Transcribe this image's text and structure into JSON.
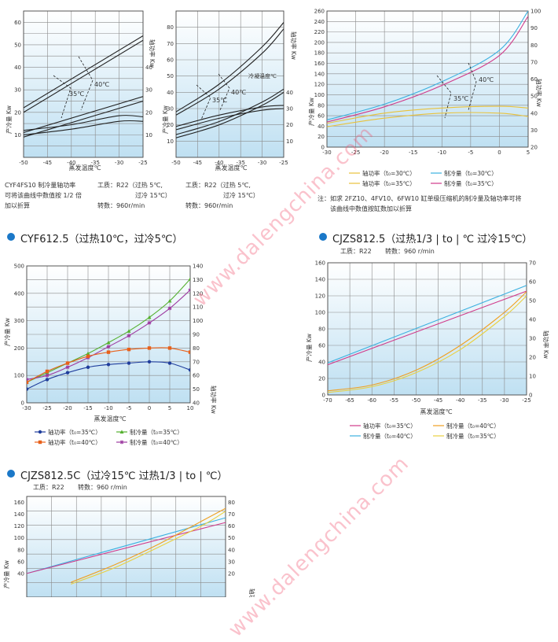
{
  "watermark": "www.dalengchina.com",
  "common": {
    "x_label": "蒸发温度℃",
    "cap_label": "产冷量 Kw",
    "pow_label": "轴功率 Kw",
    "work_fluid": "工质：R22",
    "speed": "转数：960r/min",
    "speed2": "转数：960 r/min"
  },
  "top_left": {
    "note_lines": [
      "CYF4FS10  制冷量轴功率",
      "可将该曲线中数值按 1/2 倍",
      "加以折算"
    ],
    "cond_line1": "工质：R22（过热 5℃,",
    "cond_line2": "过冷 15℃）",
    "speed": "转数：960r/min"
  },
  "top_mid": {
    "cond_line1": "工质：R22（过热 5℃,",
    "cond_line2": "过冷 15℃）",
    "speed": "转数：960r/min",
    "inner_label": "冷凝温度℃"
  },
  "top_right": {
    "legend": [
      "轴功率（t₀=30℃）",
      "制冷量（t₀=30℃）",
      "轴功率（t₀=35℃）",
      "制冷量（t₀=35℃）"
    ],
    "note_line1": "注：如求 2FZ10、4FV10、6FW10 缸单级压缩机的制冷量及轴功率可将",
    "note_line2": "该曲线中数值按缸数加以折算"
  },
  "mid_left": {
    "title": "CYF612.5（过热10℃，过冷5℃）",
    "legend": [
      "轴功率（t₀=35℃）",
      "制冷量（t₀=35℃）",
      "轴功率（t₀=40℃）",
      "制冷量（t₀=40℃）"
    ]
  },
  "mid_right": {
    "title": "CJZS812.5（过热1/3 | to | ℃  过冷15℃）",
    "legend": [
      "轴功率（t₀=35℃）",
      "制冷量（t₀=40℃）",
      "制冷量（t₀=40℃）",
      "制冷量（t₀=35℃）"
    ]
  },
  "bottom": {
    "title": "CJZS812.5C（过冷15℃  过热1/3 | to | ℃）"
  },
  "chart_data": [
    {
      "id": "c1",
      "type": "line",
      "xlabel": "蒸发温度℃",
      "xlim": [
        -50,
        -25
      ],
      "xticks": [
        -50,
        -45,
        -40,
        -35,
        -30,
        -25
      ],
      "ylim_left": [
        0,
        65
      ],
      "yticks_left": [
        10,
        20,
        30,
        40,
        50,
        60
      ],
      "ylabel_left": "产冷量 Kw",
      "ylim_right": [
        0,
        65
      ],
      "yticks_right": [
        10,
        20,
        30,
        40
      ],
      "ylabel_right": "轴功率 Kw",
      "annotations": [
        "35℃",
        "40℃"
      ],
      "series": [
        {
          "axis": "left",
          "color": "#222",
          "x": [
            -50,
            -25
          ],
          "y": [
            22,
            54
          ]
        },
        {
          "axis": "left",
          "color": "#222",
          "x": [
            -50,
            -25
          ],
          "y": [
            20,
            52
          ]
        },
        {
          "axis": "left",
          "color": "#222",
          "x": [
            -50,
            -40,
            -30,
            -25
          ],
          "y": [
            12,
            14.5,
            18.5,
            18
          ]
        },
        {
          "axis": "left",
          "color": "#222",
          "x": [
            -50,
            -40,
            -30,
            -25
          ],
          "y": [
            10,
            12.5,
            16,
            16
          ]
        },
        {
          "axis": "left",
          "color": "#222",
          "x": [
            -50,
            -25
          ],
          "y": [
            11,
            27
          ]
        },
        {
          "axis": "left",
          "color": "#222",
          "x": [
            -50,
            -25
          ],
          "y": [
            9,
            25
          ]
        }
      ]
    },
    {
      "id": "c2",
      "type": "line",
      "xlabel": "蒸发温度℃",
      "xlim": [
        -50,
        -25
      ],
      "xticks": [
        -50,
        -45,
        -40,
        -35,
        -30,
        -25
      ],
      "ylim_left": [
        0,
        90
      ],
      "yticks_left": [
        10,
        20,
        30,
        40,
        50,
        60,
        70,
        80
      ],
      "ylabel_left": "产冷量 Kw",
      "ylim_right": [
        0,
        90
      ],
      "yticks_right": [
        10,
        20,
        30,
        40
      ],
      "ylabel_right": "轴功率 Kw",
      "annotations": [
        "35℃",
        "40℃"
      ],
      "series": [
        {
          "axis": "left",
          "color": "#222",
          "x": [
            -50,
            -40,
            -30,
            -25
          ],
          "y": [
            28,
            45,
            68,
            83
          ]
        },
        {
          "axis": "left",
          "color": "#222",
          "x": [
            -50,
            -40,
            -30,
            -25
          ],
          "y": [
            26,
            42,
            64,
            79
          ]
        },
        {
          "axis": "left",
          "color": "#222",
          "x": [
            -50,
            -40,
            -30,
            -25
          ],
          "y": [
            19,
            26,
            31,
            32
          ]
        },
        {
          "axis": "left",
          "color": "#222",
          "x": [
            -50,
            -40,
            -30,
            -25
          ],
          "y": [
            17,
            24,
            29,
            30
          ]
        },
        {
          "axis": "left",
          "color": "#222",
          "x": [
            -50,
            -40,
            -30,
            -25
          ],
          "y": [
            14,
            22,
            34,
            42
          ]
        },
        {
          "axis": "left",
          "color": "#222",
          "x": [
            -50,
            -40,
            -30,
            -25
          ],
          "y": [
            12,
            20,
            32,
            40
          ]
        }
      ]
    },
    {
      "id": "c3",
      "type": "line",
      "xlabel": "",
      "xlim": [
        -30,
        5
      ],
      "xticks": [
        -30,
        -25,
        -20,
        -15,
        -10,
        -5,
        0,
        5
      ],
      "ylim_left": [
        0,
        260
      ],
      "yticks_left": [
        0,
        20,
        40,
        60,
        80,
        100,
        120,
        140,
        160,
        180,
        200,
        220,
        240,
        260
      ],
      "ylabel_left": "产冷量 Kw",
      "ylim_right": [
        20,
        100
      ],
      "yticks_right": [
        20,
        30,
        40,
        50,
        60,
        70,
        80,
        90,
        100
      ],
      "ylabel_right": "轴功率 Kw",
      "annotations": [
        "40℃",
        "35℃"
      ],
      "series": [
        {
          "name": "制冷量（t₀=30℃）",
          "axis": "left",
          "color": "#3bb0e0",
          "x": [
            -30,
            -20,
            -10,
            0,
            5
          ],
          "y": [
            52,
            82,
            125,
            185,
            260
          ]
        },
        {
          "name": "制冷量（t₀=35℃）",
          "axis": "left",
          "color": "#d03a8a",
          "x": [
            -30,
            -20,
            -10,
            0,
            5
          ],
          "y": [
            48,
            77,
            118,
            175,
            250
          ]
        },
        {
          "name": "轴功率（t₀=30℃）",
          "axis": "right",
          "color": "#e9c23b",
          "x": [
            -30,
            -20,
            -10,
            0,
            5
          ],
          "y": [
            34,
            40,
            43,
            44,
            43
          ]
        },
        {
          "name": "轴功率（t₀=35℃）",
          "axis": "right",
          "color": "#e9c23b",
          "x": [
            -30,
            -20,
            -10,
            0,
            5
          ],
          "y": [
            32,
            37,
            40,
            40,
            38
          ]
        }
      ]
    },
    {
      "id": "c4",
      "type": "line",
      "xlabel": "蒸发温度℃",
      "xlim": [
        -30,
        10
      ],
      "xticks": [
        -30,
        -25,
        -20,
        -15,
        -10,
        -5,
        0,
        5,
        10
      ],
      "ylim_left": [
        0,
        500
      ],
      "yticks_left": [
        0,
        100,
        200,
        300,
        400,
        500
      ],
      "ylabel_left": "产冷量 Kw",
      "ylim_right": [
        40,
        140
      ],
      "yticks_right": [
        40,
        50,
        60,
        70,
        80,
        90,
        100,
        110,
        120,
        130,
        140
      ],
      "ylabel_right": "轴功率 Kw",
      "series": [
        {
          "name": "制冷量（t₀=35℃）",
          "axis": "left",
          "color": "#55b030",
          "marker": "^",
          "x": [
            -30,
            -25,
            -20,
            -15,
            -10,
            -5,
            0,
            5,
            10
          ],
          "y": [
            75,
            110,
            145,
            180,
            220,
            262,
            312,
            372,
            452
          ]
        },
        {
          "name": "制冷量（t₀=40℃）",
          "axis": "left",
          "color": "#9c3aa0",
          "marker": "*",
          "x": [
            -30,
            -25,
            -20,
            -15,
            -10,
            -5,
            0,
            5,
            10
          ],
          "y": [
            85,
            100,
            130,
            165,
            205,
            245,
            292,
            345,
            412
          ]
        },
        {
          "name": "轴功率（t₀=40℃）",
          "axis": "right",
          "color": "#e8601a",
          "marker": "s",
          "x": [
            -30,
            -25,
            -20,
            -15,
            -10,
            -5,
            0,
            5,
            10
          ],
          "y": [
            55,
            63,
            69,
            74,
            77,
            79,
            80,
            80,
            77
          ]
        },
        {
          "name": "轴功率（t₀=35℃）",
          "axis": "right",
          "color": "#1f3d9c",
          "marker": "o",
          "x": [
            -30,
            -25,
            -20,
            -15,
            -10,
            -5,
            0,
            5,
            10
          ],
          "y": [
            50,
            57,
            62,
            66,
            68,
            69,
            70,
            69,
            64
          ]
        }
      ]
    },
    {
      "id": "c5",
      "type": "line",
      "xlabel": "蒸发温度℃",
      "xlim": [
        -70,
        -25
      ],
      "xticks": [
        -70,
        -65,
        -60,
        -55,
        -50,
        -45,
        -40,
        -35,
        -30,
        -25
      ],
      "ylim_left": [
        0,
        160
      ],
      "yticks_left": [
        0,
        20,
        40,
        60,
        80,
        100,
        120,
        140,
        160
      ],
      "ylabel_left": "产冷量 Kw",
      "ylim_right": [
        0,
        70
      ],
      "yticks_right": [
        0,
        10,
        20,
        30,
        40,
        50,
        60,
        70
      ],
      "ylabel_right": "轴功率 Kw",
      "series": [
        {
          "name": "轴功率（t₀=40℃）",
          "axis": "right",
          "color": "#3bb0e0",
          "x": [
            -70,
            -25
          ],
          "y": [
            17,
            58
          ]
        },
        {
          "name": "轴功率（t₀=35℃）",
          "axis": "right",
          "color": "#d03a8a",
          "x": [
            -70,
            -25
          ],
          "y": [
            16,
            55
          ]
        },
        {
          "name": "制冷量（t₀=40℃）",
          "axis": "left",
          "color": "#f0a020",
          "x": [
            -70,
            -60,
            -50,
            -40,
            -30,
            -25
          ],
          "y": [
            5,
            12,
            30,
            60,
            100,
            125
          ]
        },
        {
          "name": "制冷量（t₀=35℃）",
          "axis": "left",
          "color": "#e9d040",
          "x": [
            -70,
            -60,
            -50,
            -40,
            -30,
            -25
          ],
          "y": [
            3,
            10,
            27,
            55,
            95,
            120
          ]
        }
      ]
    },
    {
      "id": "c6",
      "type": "line",
      "xlabel": "",
      "xlim": [
        -70,
        -25
      ],
      "ylim_left": [
        0,
        170
      ],
      "yticks_left": [
        40,
        60,
        80,
        100,
        120,
        140,
        160
      ],
      "ylabel_left": "产冷量 Kw",
      "ylim_right": [
        0,
        85
      ],
      "yticks_right": [
        20,
        30,
        40,
        50,
        60,
        70,
        80
      ],
      "ylabel_right": "轴功率 Kw",
      "series": [
        {
          "axis": "right",
          "color": "#3bb0e0",
          "x": [
            -70,
            -25
          ],
          "y": [
            20,
            67
          ]
        },
        {
          "axis": "right",
          "color": "#d03a8a",
          "x": [
            -70,
            -25
          ],
          "y": [
            20,
            63
          ]
        },
        {
          "axis": "left",
          "color": "#f0a020",
          "x": [
            -60,
            -50,
            -40,
            -30,
            -25
          ],
          "y": [
            25,
            55,
            90,
            130,
            150
          ]
        },
        {
          "axis": "left",
          "color": "#e9d040",
          "x": [
            -60,
            -50,
            -40,
            -30,
            -25
          ],
          "y": [
            22,
            50,
            85,
            122,
            145
          ]
        }
      ]
    }
  ]
}
